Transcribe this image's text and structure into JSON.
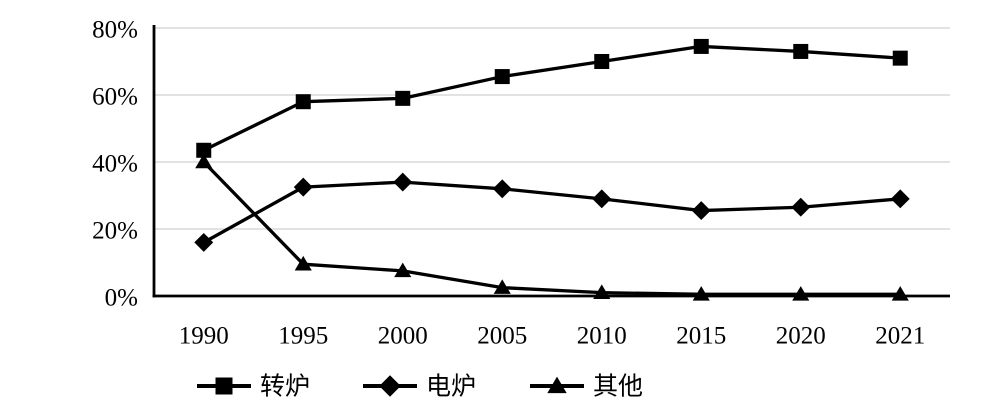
{
  "chart_data": {
    "type": "line",
    "title": "",
    "xlabel": "",
    "ylabel": "",
    "categories": [
      "1990",
      "1995",
      "2000",
      "2005",
      "2010",
      "2015",
      "2020",
      "2021"
    ],
    "series": [
      {
        "id": "converter",
        "name": "转炉",
        "marker": "square",
        "color": "#000000",
        "values": [
          43.5,
          58,
          59,
          65.5,
          70,
          74.5,
          73,
          71
        ]
      },
      {
        "id": "electric-furnace",
        "name": "电炉",
        "marker": "diamond",
        "color": "#000000",
        "values": [
          16,
          32.5,
          34,
          32,
          29,
          25.5,
          26.5,
          29
        ]
      },
      {
        "id": "other",
        "name": "其他",
        "marker": "triangle",
        "color": "#000000",
        "values": [
          40,
          9.5,
          7.5,
          2.5,
          1,
          0.5,
          0.5,
          0.5
        ]
      }
    ],
    "ylim": [
      0,
      80
    ],
    "yticks": [
      0,
      20,
      40,
      60,
      80
    ],
    "y_tick_labels": [
      "0%",
      "20%",
      "40%",
      "60%",
      "80%"
    ],
    "grid": true,
    "gridline_color": "#d9d9d9",
    "axis_color": "#000000",
    "background_color": "#ffffff",
    "legend_position": "bottom"
  }
}
